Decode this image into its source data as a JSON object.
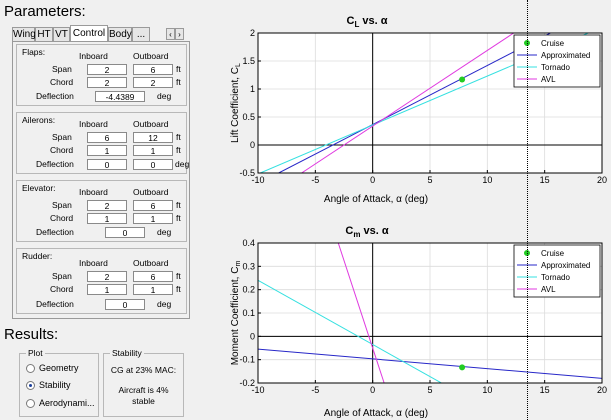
{
  "parameters_title": "Parameters:",
  "results_title": "Results:",
  "tabs": [
    {
      "label": "Wing",
      "active": false
    },
    {
      "label": "HT",
      "active": false
    },
    {
      "label": "VT",
      "active": false
    },
    {
      "label": "Control",
      "active": true
    },
    {
      "label": "Body",
      "active": false
    },
    {
      "label": "...",
      "active": false
    }
  ],
  "tab_nav": {
    "prev": "‹",
    "next": "›"
  },
  "flaps": {
    "title": "Flaps:",
    "col_inboard": "Inboard",
    "col_outboard": "Outboard",
    "span_label": "Span",
    "span_inboard": "2",
    "span_outboard": "6",
    "span_unit": "ft",
    "chord_label": "Chord",
    "chord_inboard": "2",
    "chord_outboard": "2",
    "chord_unit": "ft",
    "deflection_label": "Deflection",
    "deflection": "-4.4389",
    "deflection_unit": "deg"
  },
  "ailerons": {
    "title": "Ailerons:",
    "col_inboard": "Inboard",
    "col_outboard": "Outboard",
    "span_label": "Span",
    "span_inboard": "6",
    "span_outboard": "12",
    "span_unit": "ft",
    "chord_label": "Chord",
    "chord_inboard": "1",
    "chord_outboard": "1",
    "chord_unit": "ft",
    "deflection_label": "Deflection",
    "deflection_inboard": "0",
    "deflection_outboard": "0",
    "deflection_unit": "deg"
  },
  "elevator": {
    "title": "Elevator:",
    "col_inboard": "Inboard",
    "col_outboard": "Outboard",
    "span_label": "Span",
    "span_inboard": "2",
    "span_outboard": "6",
    "span_unit": "ft",
    "chord_label": "Chord",
    "chord_inboard": "1",
    "chord_outboard": "1",
    "chord_unit": "ft",
    "deflection_label": "Deflection",
    "deflection": "0",
    "deflection_unit": "deg"
  },
  "rudder": {
    "title": "Rudder:",
    "col_inboard": "Inboard",
    "col_outboard": "Outboard",
    "span_label": "Span",
    "span_inboard": "2",
    "span_outboard": "6",
    "span_unit": "ft",
    "chord_label": "Chord",
    "chord_inboard": "1",
    "chord_outboard": "1",
    "chord_unit": "ft",
    "deflection_label": "Deflection",
    "deflection": "0",
    "deflection_unit": "deg"
  },
  "plot_panel": {
    "title": "Plot",
    "options": [
      "Geometry",
      "Stability",
      "Aerodynami..."
    ],
    "selected": "Stability"
  },
  "stability_panel": {
    "title": "Stability",
    "cg_text": "CG at 23% MAC:",
    "stable_line1": "Aircraft is 4%",
    "stable_line2": "stable"
  },
  "colors": {
    "cruise": "#22cc22",
    "approximated": "#2727c8",
    "tornado": "#35e0e0",
    "avl": "#e03ae0"
  },
  "chart_data": [
    {
      "type": "line",
      "title": "C_L vs. α",
      "title_main": "C",
      "title_sub": "L",
      "title_rest": " vs. α",
      "xlabel": "Angle of Attack, α (deg)",
      "ylabel_main": "Lift Coefficient, C",
      "ylabel_sub": "L",
      "xlim": [
        -10,
        20
      ],
      "ylim": [
        -0.5,
        2
      ],
      "xticks": [
        -10,
        -5,
        0,
        5,
        10,
        15,
        20
      ],
      "yticks": [
        -0.5,
        0,
        0.5,
        1,
        1.5,
        2
      ],
      "ytick_labels": [
        "-0.5",
        "0",
        "0.5",
        "1",
        "1.5",
        "2"
      ],
      "grid": true,
      "legend_position": "top-right",
      "series": [
        {
          "name": "Cruise",
          "kind": "point",
          "color": "#22cc22",
          "x": [
            7.8
          ],
          "y": [
            1.17
          ]
        },
        {
          "name": "Approximated",
          "kind": "line",
          "color": "#2727c8",
          "x": [
            -8.2,
            15.5
          ],
          "y": [
            -0.5,
            2.0
          ]
        },
        {
          "name": "Tornado",
          "kind": "line",
          "color": "#35e0e0",
          "x": [
            -9.8,
            18.8
          ],
          "y": [
            -0.5,
            2.0
          ]
        },
        {
          "name": "AVL",
          "kind": "line",
          "color": "#e03ae0",
          "x": [
            -6.2,
            12.3
          ],
          "y": [
            -0.5,
            2.0
          ]
        }
      ]
    },
    {
      "type": "line",
      "title": "C_m vs. α",
      "title_main": "C",
      "title_sub": "m",
      "title_rest": " vs. α",
      "xlabel": "Angle of Attack, α (deg)",
      "ylabel_main": "Moment Coefficient, C",
      "ylabel_sub": "m",
      "xlim": [
        -10,
        20
      ],
      "ylim": [
        -0.2,
        0.4
      ],
      "xticks": [
        -10,
        -5,
        0,
        5,
        10,
        15,
        20
      ],
      "yticks": [
        -0.2,
        -0.1,
        0,
        0.1,
        0.2,
        0.3,
        0.4
      ],
      "ytick_labels": [
        "-0.2",
        "-0.1",
        "0",
        "0.1",
        "0.2",
        "0.3",
        "0.4"
      ],
      "grid": true,
      "legend_position": "top-right",
      "series": [
        {
          "name": "Cruise",
          "kind": "point",
          "color": "#22cc22",
          "x": [
            7.8
          ],
          "y": [
            -0.133
          ]
        },
        {
          "name": "Approximated",
          "kind": "line",
          "color": "#2727c8",
          "x": [
            -10,
            20
          ],
          "y": [
            -0.055,
            -0.18
          ]
        },
        {
          "name": "Tornado",
          "kind": "line",
          "color": "#35e0e0",
          "x": [
            -10,
            6
          ],
          "y": [
            0.24,
            -0.2
          ]
        },
        {
          "name": "AVL",
          "kind": "line",
          "color": "#e03ae0",
          "x": [
            -3,
            1
          ],
          "y": [
            0.4,
            -0.2
          ]
        }
      ]
    }
  ]
}
